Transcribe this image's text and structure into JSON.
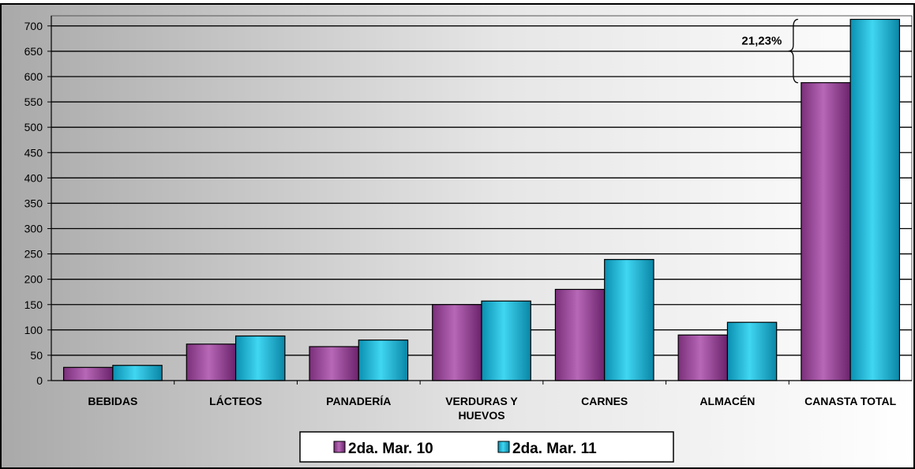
{
  "chart_data": {
    "type": "bar",
    "title": "",
    "categories": [
      "BEBIDAS",
      "LÁCTEOS",
      "PANADERÍA",
      "VERDURAS Y HUEVOS",
      "CARNES",
      "ALMACÉN",
      "CANASTA TOTAL"
    ],
    "category_lines": [
      [
        "BEBIDAS"
      ],
      [
        "LÁCTEOS"
      ],
      [
        "PANADERÍA"
      ],
      [
        "VERDURAS Y",
        "HUEVOS"
      ],
      [
        "CARNES"
      ],
      [
        "ALMACÉN"
      ],
      [
        "CANASTA TOTAL"
      ]
    ],
    "series": [
      {
        "name": "2da. Mar. 10",
        "color": "#9b4a9b",
        "values": [
          26,
          72,
          67,
          150,
          180,
          90,
          588
        ]
      },
      {
        "name": "2da. Mar. 11",
        "color": "#19b9d6",
        "values": [
          30,
          88,
          80,
          157,
          239,
          115,
          713
        ]
      }
    ],
    "ylim": [
      0,
      720
    ],
    "yticks": [
      0,
      50,
      100,
      150,
      200,
      250,
      300,
      350,
      400,
      450,
      500,
      550,
      600,
      650,
      700
    ],
    "grid": true,
    "legend_position": "bottom",
    "annotation": {
      "text": "21,23%",
      "category": "CANASTA TOTAL",
      "from_value": 588,
      "to_value": 713
    }
  }
}
